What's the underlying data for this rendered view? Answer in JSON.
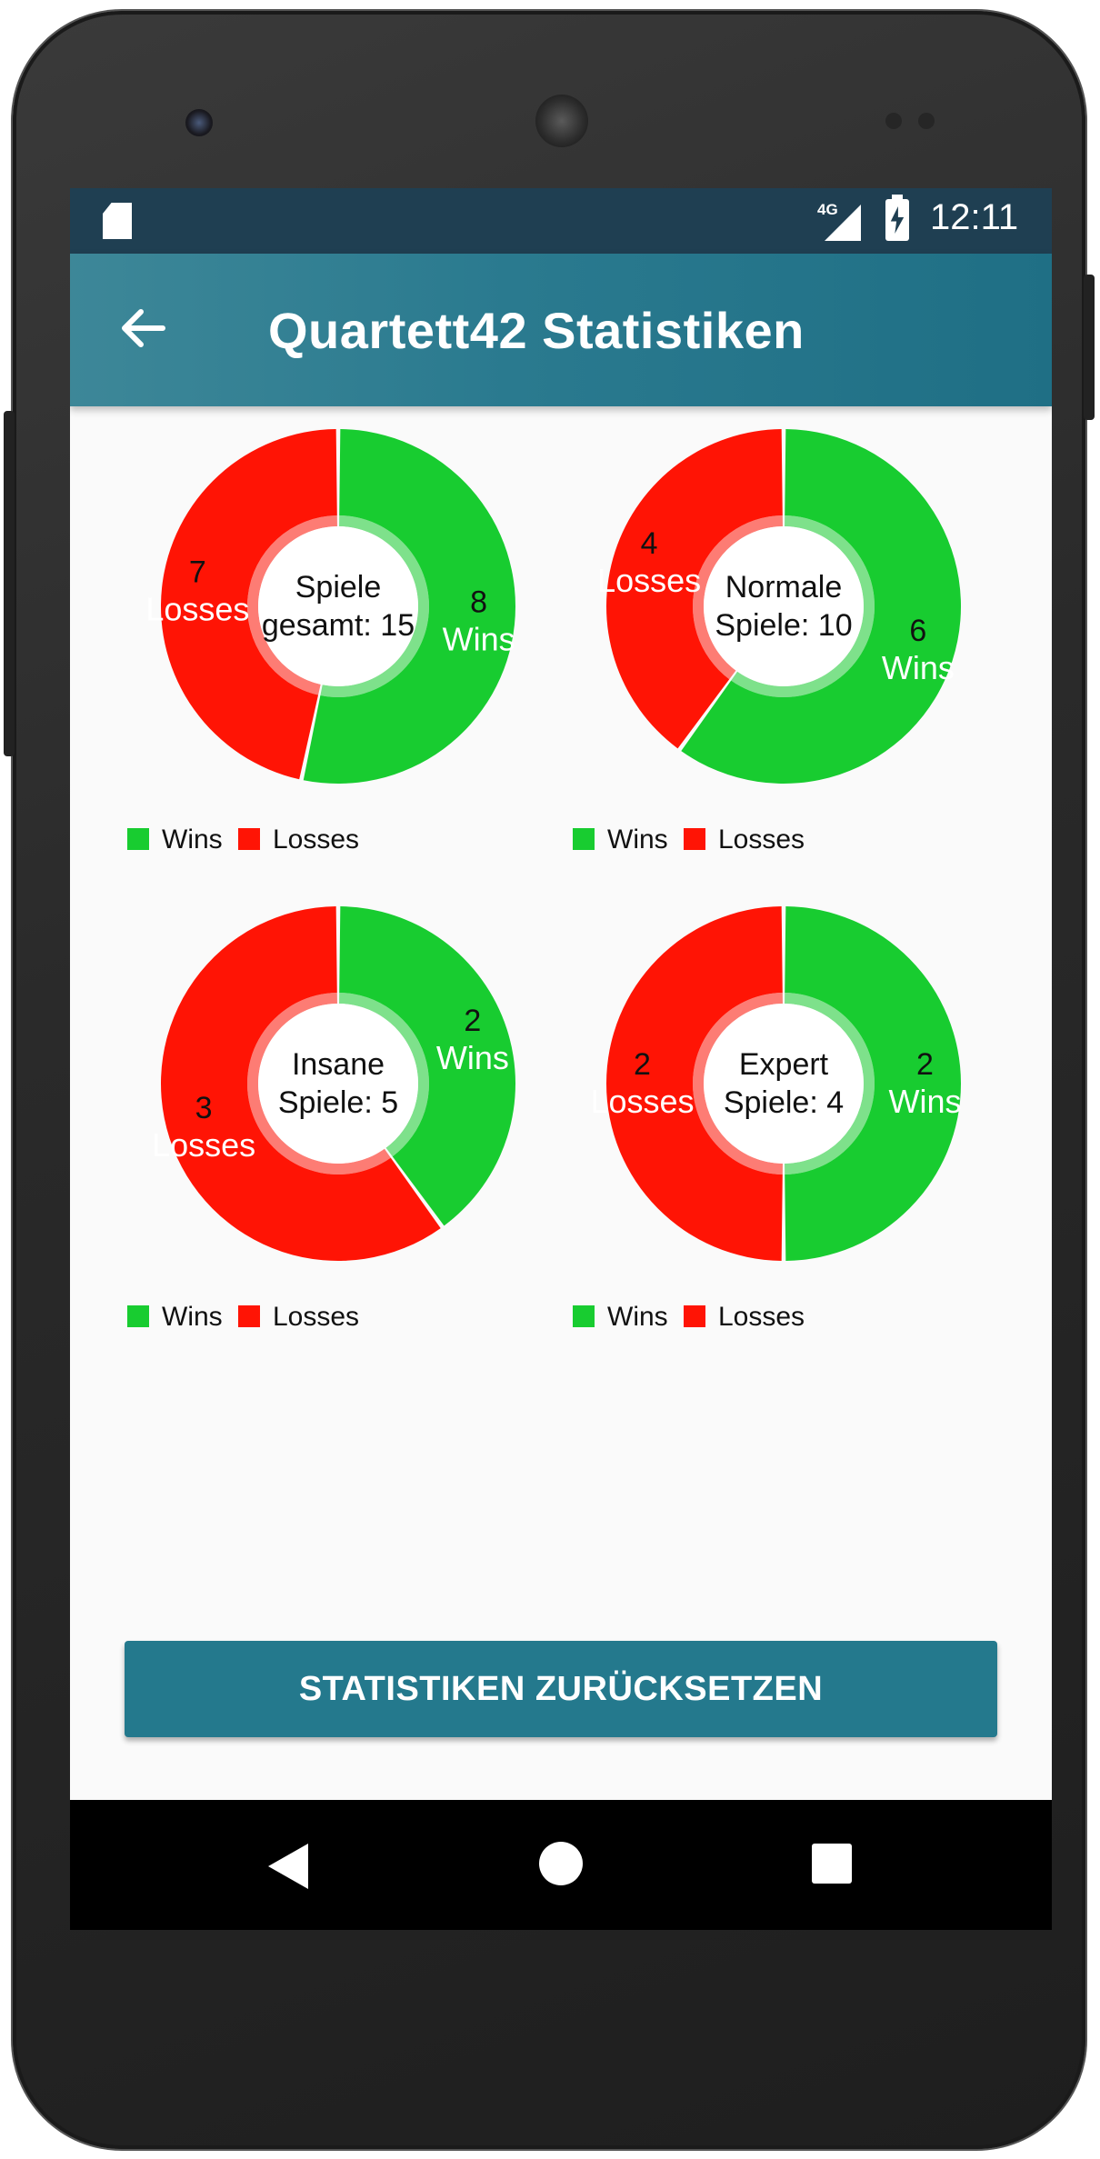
{
  "status_bar": {
    "network": "4G",
    "time": "12:11"
  },
  "app_bar": {
    "title": "Quartett42 Statistiken"
  },
  "colors": {
    "wins": "#18cc30",
    "losses": "#ff1405",
    "appbar": "#24798d"
  },
  "legend": {
    "wins": "Wins",
    "losses": "Losses"
  },
  "chart_data": [
    {
      "type": "pie",
      "center_line1": "Spiele",
      "center_line2": "gesamt: 15",
      "series": [
        {
          "name": "Wins",
          "value": 8
        },
        {
          "name": "Losses",
          "value": 7
        }
      ]
    },
    {
      "type": "pie",
      "center_line1": "Normale",
      "center_line2": "Spiele: 10",
      "series": [
        {
          "name": "Wins",
          "value": 6
        },
        {
          "name": "Losses",
          "value": 4
        }
      ]
    },
    {
      "type": "pie",
      "center_line1": "Insane",
      "center_line2": "Spiele: 5",
      "series": [
        {
          "name": "Wins",
          "value": 2
        },
        {
          "name": "Losses",
          "value": 3
        }
      ]
    },
    {
      "type": "pie",
      "center_line1": "Expert",
      "center_line2": "Spiele: 4",
      "series": [
        {
          "name": "Wins",
          "value": 2
        },
        {
          "name": "Losses",
          "value": 2
        }
      ]
    }
  ],
  "reset_button": {
    "label": "STATISTIKEN ZURÜCKSETZEN"
  }
}
